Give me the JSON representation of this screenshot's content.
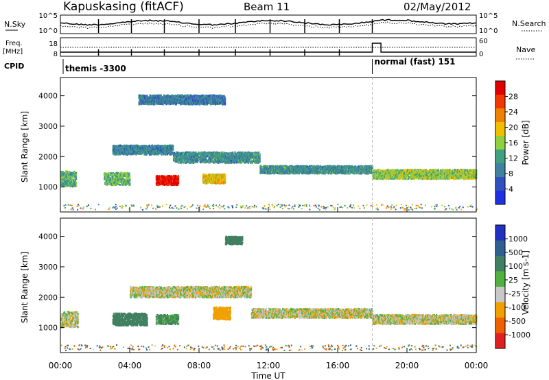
{
  "header": {
    "station": "Kapuskasing (fitACF)",
    "beam": "Beam 11",
    "date": "02/May/2012"
  },
  "noise_panel": {
    "left_label": "N.Sky",
    "right_label": "N.Search",
    "ticks_left": [
      "10^5",
      "10^0"
    ],
    "ticks_right": [
      "10^5",
      "10^0"
    ]
  },
  "freq_panel": {
    "left_label_1": "Freq.",
    "left_label_2": "[MHz]",
    "right_label": "Nave",
    "ticks_left": [
      "18",
      "8"
    ],
    "ticks_right": [
      "60",
      "0"
    ]
  },
  "cpid": {
    "label": "CPID",
    "modes": [
      {
        "name": "themis -3300",
        "start_hour": 0
      },
      {
        "name": "normal (fast) 151",
        "start_hour": 18
      }
    ]
  },
  "chart_data": [
    {
      "type": "heatmap",
      "panel": "power",
      "ylabel": "Slant Range [km]",
      "xlabel": "Time UT",
      "y_ticks": [
        1000,
        2000,
        3000,
        4000
      ],
      "ylim": [
        180,
        4600
      ],
      "colorbar_label": "Power [dB]",
      "colorbar_ticks": [
        "28",
        "24",
        "20",
        "16",
        "12",
        "8",
        "4"
      ],
      "colorbar_colors": [
        "#e00000",
        "#f03800",
        "#f08000",
        "#f0c000",
        "#90d040",
        "#40a080",
        "#4080a0",
        "#3050c0",
        "#2030e0"
      ],
      "bands": [
        {
          "t_start": 0.0,
          "t_end": 0.9,
          "range_center": 1300,
          "width": 500,
          "power": 9
        },
        {
          "t_start": 2.5,
          "t_end": 4.0,
          "range_center": 1300,
          "width": 400,
          "power": 10
        },
        {
          "t_start": 3.0,
          "t_end": 6.5,
          "range_center": 2250,
          "width": 300,
          "power": 6
        },
        {
          "t_start": 5.5,
          "t_end": 6.8,
          "range_center": 1250,
          "width": 300,
          "power": 26
        },
        {
          "t_start": 8.2,
          "t_end": 9.5,
          "range_center": 1300,
          "width": 300,
          "power": 16
        },
        {
          "t_start": 6.5,
          "t_end": 11.5,
          "range_center": 2000,
          "width": 350,
          "power": 7
        },
        {
          "t_start": 11.5,
          "t_end": 18.0,
          "range_center": 1600,
          "width": 250,
          "power": 7
        },
        {
          "t_start": 18.0,
          "t_end": 24.0,
          "range_center": 1450,
          "width": 300,
          "power": 12
        },
        {
          "t_start": 4.5,
          "t_end": 9.5,
          "range_center": 3900,
          "width": 300,
          "power": 5
        }
      ]
    },
    {
      "type": "heatmap",
      "panel": "velocity",
      "ylabel": "Slant Range [km]",
      "xlabel": "Time UT",
      "y_ticks": [
        1000,
        2000,
        3000,
        4000
      ],
      "ylim": [
        180,
        4600
      ],
      "colorbar_label": "Velocity [m s-1]",
      "colorbar_ticks": [
        "1000",
        "500",
        "100",
        "25",
        "-25",
        "-100",
        "-500",
        "-1000"
      ],
      "colorbar_colors": [
        "#2030c0",
        "#306090",
        "#408060",
        "#50b040",
        "#c8c8c8",
        "#f0a000",
        "#f06000",
        "#e02020"
      ],
      "bands": [
        {
          "t_start": 0.0,
          "t_end": 1.0,
          "range_center": 1300,
          "width": 500,
          "velocity": 0
        },
        {
          "t_start": 3.0,
          "t_end": 5.0,
          "range_center": 1300,
          "width": 400,
          "velocity": 150
        },
        {
          "t_start": 5.5,
          "t_end": 6.8,
          "range_center": 1300,
          "width": 300,
          "velocity": 80
        },
        {
          "t_start": 8.8,
          "t_end": 9.8,
          "range_center": 1500,
          "width": 400,
          "velocity": -200
        },
        {
          "t_start": 4.0,
          "t_end": 11.0,
          "range_center": 2200,
          "width": 350,
          "velocity": 0
        },
        {
          "t_start": 11.0,
          "t_end": 18.0,
          "range_center": 1500,
          "width": 300,
          "velocity": 0
        },
        {
          "t_start": 18.0,
          "t_end": 24.0,
          "range_center": 1300,
          "width": 300,
          "velocity": 0
        },
        {
          "t_start": 9.5,
          "t_end": 10.5,
          "range_center": 3900,
          "width": 250,
          "velocity": 150
        }
      ]
    }
  ],
  "time_axis": {
    "label": "Time UT",
    "ticks": [
      "00:00",
      "04:00",
      "08:00",
      "12:00",
      "16:00",
      "20:00",
      "00:00"
    ],
    "range_hours": [
      0,
      24
    ]
  }
}
